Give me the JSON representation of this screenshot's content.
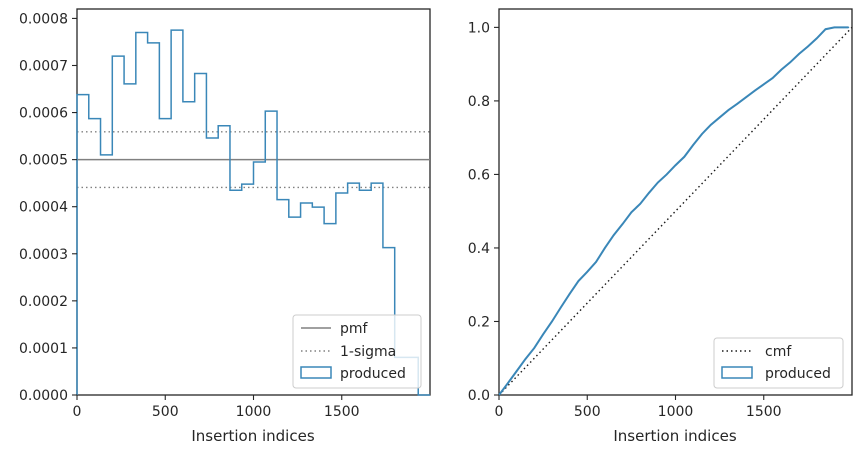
{
  "chart_data": [
    {
      "type": "histogram",
      "xlabel": "Insertion indices",
      "ylabel": "",
      "xlim": [
        0,
        2000
      ],
      "ylim": [
        0,
        0.00082
      ],
      "xticks": [
        "0",
        "500",
        "1000",
        "1500"
      ],
      "yticks": [
        "0.0000",
        "0.0001",
        "0.0002",
        "0.0003",
        "0.0004",
        "0.0005",
        "0.0006",
        "0.0007",
        "0.0008"
      ],
      "bin_width": 66.7,
      "bin_edges": [
        0,
        66.7,
        133.3,
        200,
        266.7,
        333.3,
        400,
        466.7,
        533.3,
        600,
        666.7,
        733.3,
        800,
        866.7,
        933.3,
        1000,
        1066.7,
        1133.3,
        1200,
        1266.7,
        1333.3,
        1400,
        1466.7,
        1533.3,
        1600,
        1666.7,
        1733.3,
        1800,
        1866.7,
        1933.3,
        2000
      ],
      "produced": [
        0.000638,
        0.000587,
        0.00051,
        0.00072,
        0.000661,
        0.00077,
        0.000748,
        0.000587,
        0.000775,
        0.000623,
        0.000683,
        0.000546,
        0.000572,
        0.000435,
        0.000448,
        0.000495,
        0.000603,
        0.000415,
        0.000378,
        0.000408,
        0.000399,
        0.000364,
        0.000429,
        0.00045,
        0.000435,
        0.00045,
        0.000313,
        8e-05,
        8e-05,
        0.0
      ],
      "pmf": 0.0005,
      "sigma_band": [
        0.000441,
        0.000559
      ],
      "legend": [
        "pmf",
        "1-sigma",
        "produced"
      ],
      "legend_position": "lower-right",
      "grid": false,
      "colors": {
        "produced": "#3a87b8",
        "pmf": "#808080",
        "sigma": "#808080"
      }
    },
    {
      "type": "line",
      "xlabel": "Insertion indices",
      "ylabel": "",
      "xlim": [
        0,
        2000
      ],
      "ylim": [
        0,
        1.05
      ],
      "xticks": [
        "0",
        "500",
        "1000",
        "1500"
      ],
      "yticks": [
        "0.0",
        "0.2",
        "0.4",
        "0.6",
        "0.8",
        "1.0"
      ],
      "produced": {
        "x": [
          0,
          50,
          100,
          150,
          200,
          250,
          300,
          350,
          400,
          450,
          500,
          550,
          600,
          650,
          700,
          750,
          800,
          850,
          900,
          950,
          1000,
          1050,
          1100,
          1150,
          1200,
          1250,
          1300,
          1350,
          1400,
          1450,
          1500,
          1550,
          1600,
          1650,
          1700,
          1750,
          1800,
          1850,
          1900,
          1950,
          1980
        ],
        "y": [
          0,
          0.032,
          0.065,
          0.098,
          0.128,
          0.165,
          0.2,
          0.238,
          0.275,
          0.31,
          0.335,
          0.362,
          0.4,
          0.435,
          0.465,
          0.497,
          0.52,
          0.55,
          0.578,
          0.6,
          0.625,
          0.648,
          0.68,
          0.71,
          0.735,
          0.755,
          0.775,
          0.792,
          0.81,
          0.828,
          0.845,
          0.862,
          0.885,
          0.905,
          0.928,
          0.948,
          0.97,
          0.995,
          1.0,
          1.0,
          1.0
        ]
      },
      "cmf": {
        "x": [
          0,
          2000
        ],
        "y": [
          0,
          1.0
        ]
      },
      "legend": [
        "cmf",
        "produced"
      ],
      "legend_position": "lower-right",
      "grid": false,
      "colors": {
        "produced": "#3a87b8",
        "cmf": "#1a1a1a"
      }
    }
  ]
}
